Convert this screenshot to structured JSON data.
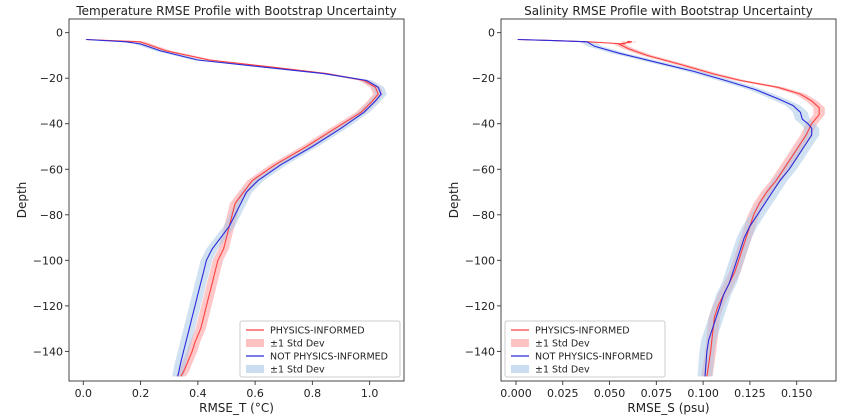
{
  "chart_data": [
    {
      "type": "line",
      "title": "Temperature RMSE Profile with Bootstrap Uncertainty",
      "xlabel": "RMSE_T  (°C)",
      "ylabel": "Depth",
      "xlim": [
        -0.05,
        1.12
      ],
      "ylim": [
        -153,
        6
      ],
      "xticks": [
        0.0,
        0.2,
        0.4,
        0.6,
        0.8,
        1.0
      ],
      "xtick_labels": [
        "0.0",
        "0.2",
        "0.4",
        "0.6",
        "0.8",
        "1.0"
      ],
      "yticks": [
        0,
        -20,
        -40,
        -60,
        -80,
        -100,
        -120,
        -140
      ],
      "ytick_labels": [
        "0",
        "−20",
        "−40",
        "−60",
        "−80",
        "−100",
        "−120",
        "−140"
      ],
      "legend_position": "lower-right",
      "legend": [
        "PHYSICS-INFORMED",
        "±1 Std Dev",
        "NOT PHYSICS-INFORMED",
        "±1 Std Dev"
      ],
      "series": [
        {
          "name": "PHYSICS-INFORMED",
          "color": "#ff4040",
          "band_color": "#ff9999",
          "std": 0.018,
          "x": [
            0.01,
            0.2,
            0.22,
            0.29,
            0.44,
            0.65,
            0.85,
            0.98,
            1.02,
            1.03,
            1.01,
            0.97,
            0.88,
            0.78,
            0.67,
            0.59,
            0.56,
            0.53,
            0.52,
            0.51,
            0.5,
            0.49,
            0.47,
            0.46,
            0.45,
            0.44,
            0.43,
            0.42,
            0.41,
            0.4,
            0.39,
            0.38,
            0.37,
            0.36,
            0.35,
            0.34
          ],
          "y": [
            -3,
            -4,
            -5,
            -8,
            -12,
            -15,
            -18,
            -21,
            -24,
            -27,
            -30,
            -35,
            -42,
            -50,
            -58,
            -65,
            -70,
            -75,
            -80,
            -85,
            -90,
            -95,
            -100,
            -105,
            -110,
            -115,
            -120,
            -125,
            -130,
            -133,
            -136,
            -140,
            -143,
            -146,
            -149,
            -151
          ]
        },
        {
          "name": "NOT PHYSICS-INFORMED",
          "color": "#2b2bdc",
          "band_color": "#a9c8e8",
          "std": 0.02,
          "x": [
            0.01,
            0.15,
            0.2,
            0.27,
            0.4,
            0.62,
            0.84,
            0.99,
            1.03,
            1.04,
            1.02,
            0.98,
            0.9,
            0.8,
            0.69,
            0.61,
            0.57,
            0.55,
            0.53,
            0.51,
            0.48,
            0.45,
            0.43,
            0.42,
            0.41,
            0.4,
            0.39,
            0.38,
            0.37,
            0.36,
            0.35,
            0.34,
            0.33
          ],
          "y": [
            -3,
            -4,
            -5,
            -8,
            -12,
            -15,
            -18,
            -21,
            -24,
            -27,
            -30,
            -35,
            -42,
            -50,
            -58,
            -65,
            -70,
            -75,
            -80,
            -85,
            -90,
            -95,
            -100,
            -105,
            -110,
            -115,
            -120,
            -125,
            -130,
            -135,
            -140,
            -145,
            -151
          ]
        }
      ]
    },
    {
      "type": "line",
      "title": "Salinity RMSE Profile with Bootstrap Uncertainty",
      "xlabel": "RMSE_S  (psu)",
      "ylabel": "Depth",
      "xlim": [
        -0.008,
        0.171
      ],
      "ylim": [
        -153,
        6
      ],
      "xticks": [
        0.0,
        0.025,
        0.05,
        0.075,
        0.1,
        0.125,
        0.15
      ],
      "xtick_labels": [
        "0.000",
        "0.025",
        "0.050",
        "0.075",
        "0.100",
        "0.125",
        "0.150"
      ],
      "yticks": [
        0,
        -20,
        -40,
        -60,
        -80,
        -100,
        -120,
        -140
      ],
      "ytick_labels": [
        "0",
        "−20",
        "−40",
        "−60",
        "−80",
        "−100",
        "−120",
        "−140"
      ],
      "legend_position": "lower-left",
      "legend": [
        "PHYSICS-INFORMED",
        "±1 Std Dev",
        "NOT PHYSICS-INFORMED",
        "±1 Std Dev"
      ],
      "series": [
        {
          "name": "PHYSICS-INFORMED",
          "color": "#ff4040",
          "band_color": "#ff9999",
          "std": 0.003,
          "x": [
            0.001,
            0.02,
            0.039,
            0.058,
            0.06,
            0.062,
            0.055,
            0.06,
            0.07,
            0.088,
            0.105,
            0.12,
            0.14,
            0.152,
            0.158,
            0.162,
            0.162,
            0.158,
            0.155,
            0.151,
            0.147,
            0.143,
            0.139,
            0.134,
            0.13,
            0.127,
            0.125,
            0.123,
            0.121,
            0.119,
            0.117,
            0.114,
            0.111,
            0.108,
            0.106,
            0.104,
            0.102
          ],
          "y": [
            -3,
            -3.5,
            -4,
            -5,
            -3.8,
            -4,
            -5,
            -7,
            -10,
            -14,
            -18,
            -21,
            -24,
            -27,
            -30,
            -33,
            -36,
            -40,
            -45,
            -50,
            -55,
            -60,
            -65,
            -70,
            -75,
            -80,
            -85,
            -90,
            -95,
            -100,
            -105,
            -110,
            -115,
            -120,
            -125,
            -140,
            -151
          ]
        },
        {
          "name": "NOT PHYSICS-INFORMED",
          "color": "#2b2bdc",
          "band_color": "#a9c8e8",
          "std": 0.004,
          "x": [
            0.001,
            0.02,
            0.038,
            0.042,
            0.055,
            0.075,
            0.095,
            0.112,
            0.128,
            0.14,
            0.148,
            0.152,
            0.153,
            0.156,
            0.158,
            0.158,
            0.154,
            0.15,
            0.146,
            0.141,
            0.137,
            0.133,
            0.129,
            0.125,
            0.122,
            0.12,
            0.118,
            0.116,
            0.114,
            0.111,
            0.109,
            0.107,
            0.105,
            0.103,
            0.102,
            0.101
          ],
          "y": [
            -3,
            -3.5,
            -4,
            -6,
            -9,
            -13,
            -17,
            -21,
            -25,
            -29,
            -32,
            -35,
            -38,
            -40,
            -42,
            -45,
            -50,
            -55,
            -60,
            -65,
            -70,
            -75,
            -80,
            -85,
            -90,
            -95,
            -100,
            -105,
            -110,
            -115,
            -120,
            -125,
            -130,
            -135,
            -140,
            -151
          ]
        }
      ]
    }
  ]
}
